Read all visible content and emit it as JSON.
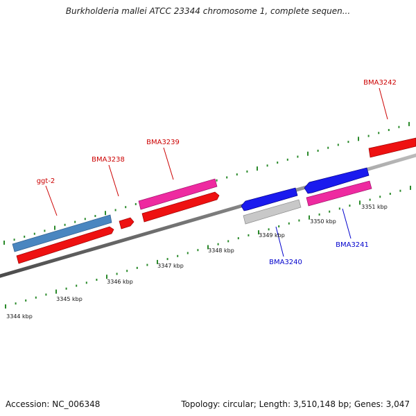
{
  "title": "Burkholderia mallei ATCC 23344 chromosome 1, complete sequen...",
  "footer": {
    "accession": "Accession: NC_006348",
    "summary": "Topology: circular; Length: 3,510,148 bp; Genes: 3,047"
  },
  "colors": {
    "backbone": "#7a7a7a",
    "ticks": "#2a8a2a",
    "forward_label": "#cc0000",
    "reverse_label": "#0000cc",
    "red": "#ee1111",
    "steelblue": "#4a86c0",
    "magenta": "#ee2aa0",
    "blue": "#1a1aee",
    "gray": "#c8c8c8"
  },
  "scale": {
    "unit": "kbp",
    "labels": [
      "3344 kbp",
      "3345 kbp",
      "3346 kbp",
      "3347 kbp",
      "3348 kbp",
      "3349 kbp",
      "3350 kbp",
      "3351 kbp"
    ]
  },
  "gene_labels": [
    {
      "text": "ggt-2",
      "strand": "forward"
    },
    {
      "text": "BMA3238",
      "strand": "forward"
    },
    {
      "text": "BMA3239",
      "strand": "forward"
    },
    {
      "text": "BMA3242",
      "strand": "forward"
    },
    {
      "text": "BMA3240",
      "strand": "reverse"
    },
    {
      "text": "BMA3241",
      "strand": "reverse"
    }
  ]
}
